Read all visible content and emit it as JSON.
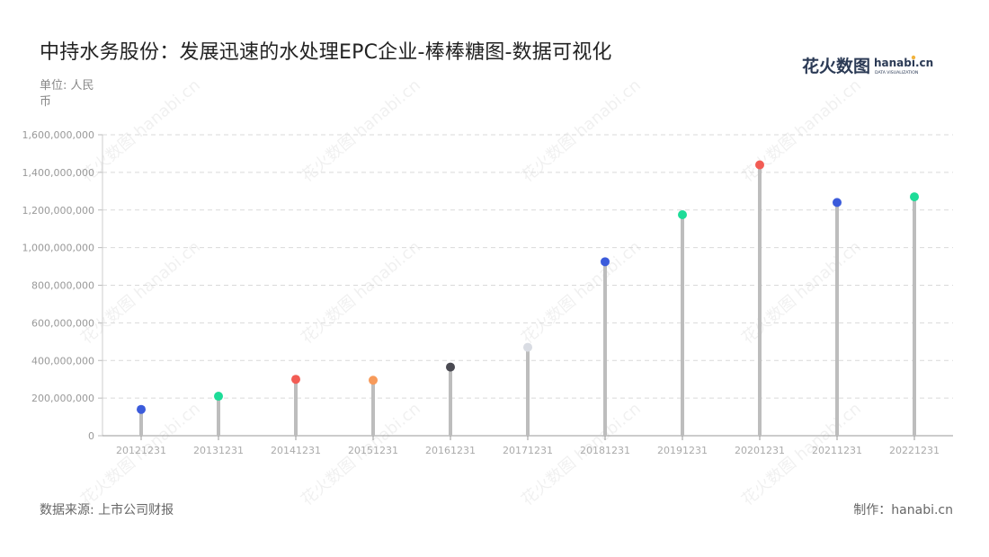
{
  "title": "中持水务股份：发展迅速的水处理EPC企业-棒棒糖图-数据可视化",
  "unit": "单位: 人民币",
  "source": "数据来源: 上市公司财报",
  "maker": "制作：hanabi.cn",
  "logo": {
    "main": "花火数图",
    "brand": "hanabi.cn",
    "sub": "DATA VISUALIZATION"
  },
  "watermark": "花火数图 hanabi.cn",
  "chart_data": {
    "type": "lollipop",
    "categories": [
      "20121231",
      "20131231",
      "20141231",
      "20151231",
      "20161231",
      "20171231",
      "20181231",
      "20191231",
      "20201231",
      "20211231",
      "20221231"
    ],
    "values": [
      140000000,
      210000000,
      300000000,
      295000000,
      365000000,
      470000000,
      925000000,
      1175000000,
      1440000000,
      1240000000,
      1270000000
    ],
    "dot_colors": [
      "#3b5bdb",
      "#1ddc98",
      "#f25c54",
      "#f79a5a",
      "#4a4a52",
      "#d9dce3",
      "#3b5bdb",
      "#1ddc98",
      "#f25c54",
      "#3b5bdb",
      "#1ddc98"
    ],
    "ylim": [
      0,
      1600000000
    ],
    "yticks": [
      "0",
      "200,000,000",
      "400,000,000",
      "600,000,000",
      "800,000,000",
      "1,000,000,000",
      "1,200,000,000",
      "1,400,000,000",
      "1,600,000,000"
    ],
    "stem_color": "#bdbdbd",
    "grid": "dashed horizontal",
    "xlabel": "",
    "ylabel": ""
  }
}
